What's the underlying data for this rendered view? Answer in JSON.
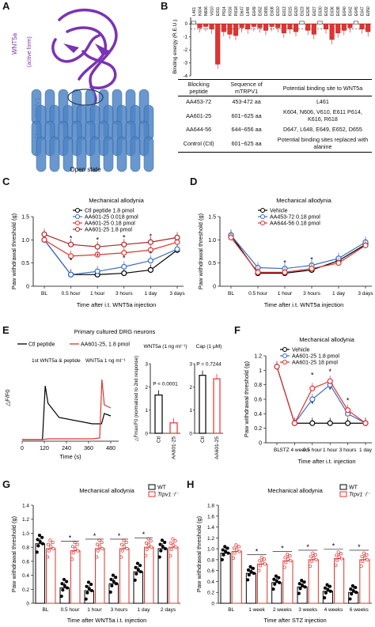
{
  "panel_labels": {
    "a": "A",
    "b": "B",
    "c": "C",
    "d": "D",
    "e": "E",
    "f": "F",
    "g": "G",
    "h": "H"
  },
  "panel_a": {
    "wnt5a_label": "WNT5a\n(active form)",
    "trpv1_label": "Mouse TRPV1",
    "state": "Open state",
    "wnt5a_color": "#7a33b5",
    "trpv1_color": "#4f86c6"
  },
  "panel_b_table": {
    "headers": [
      "Blocking peptide",
      "Sequence of mTRPV1",
      "Potential binding site to WNT5a"
    ],
    "rows": [
      [
        "AA453-72",
        "453-472 aa",
        "L461"
      ],
      [
        "AA601-25",
        "601~625 aa",
        "K604, N606, V610, E611 P614, K616, R618"
      ],
      [
        "AA644-56",
        "644~656 aa",
        "D647, L648, E649, E652, D655"
      ],
      [
        "Control (Ctl)",
        "601~625 aa",
        "Potential binding sites replaced with alanine"
      ]
    ]
  },
  "chart_data": [
    {
      "id": "B",
      "type": "bar",
      "ylabel": "Binding energy (R.E.U.)",
      "ylim": [
        -4,
        0.5
      ],
      "yticks": [
        0,
        -1,
        -2,
        -3,
        -4
      ],
      "categories": [
        "L461",
        "K604",
        "N606",
        "V610",
        "E611",
        "P614",
        "K616",
        "R618",
        "D647",
        "L648",
        "E649",
        "E652",
        "D655",
        "E608",
        "E610",
        "E613",
        "E615",
        "E620",
        "E623",
        "E626",
        "E627",
        "E630",
        "E632",
        "E636",
        "E638",
        "E640",
        "E642",
        "E645",
        "E647",
        "E650"
      ],
      "values": [
        0.2,
        -0.3,
        -0.2,
        -0.4,
        -3.1,
        -0.6,
        -0.8,
        -0.9,
        -0.3,
        -0.4,
        -0.2,
        -0.3,
        -0.5,
        -0.2,
        -0.3,
        -0.7,
        -0.4,
        -0.6,
        0.2,
        -0.5,
        -0.8,
        0.2,
        -0.4,
        -1.2,
        -0.7,
        -0.5,
        -0.3,
        0.2,
        -0.4,
        -0.6
      ]
    },
    {
      "id": "C",
      "type": "line",
      "title": "Mechanical allodynia",
      "ylabel": "Paw withdrawal threshold (g)",
      "xlabel": "Time after i.t. WNT5a injection",
      "ylim": [
        0,
        1.5
      ],
      "yticks": [
        0,
        0.5,
        1.0,
        1.5
      ],
      "categories": [
        "BL",
        "0.5 hour",
        "1 hour",
        "3 hours",
        "1 day",
        "3 days"
      ],
      "series": [
        {
          "name": "Ctl peptide",
          "dose": "1.8 pmol",
          "color": "#000000",
          "values": [
            1.0,
            0.25,
            0.25,
            0.28,
            0.35,
            0.78
          ]
        },
        {
          "name": "AA601-25",
          "dose": "0.018 pmol",
          "color": "#3b6fc4",
          "values": [
            1.0,
            0.25,
            0.32,
            0.42,
            0.55,
            0.8
          ]
        },
        {
          "name": "AA601-25",
          "dose": "0.18 pmol",
          "color": "#e0342e",
          "values": [
            1.0,
            0.65,
            0.68,
            0.72,
            0.78,
            0.95
          ]
        },
        {
          "name": "AA601-25",
          "dose": "1.8 pmol",
          "color": "#a8282a",
          "values": [
            1.12,
            0.9,
            0.85,
            0.9,
            0.95,
            1.05
          ]
        }
      ]
    },
    {
      "id": "D",
      "type": "line",
      "title": "Mechanical allodynia",
      "ylabel": "Paw withdrawal threshold (g)",
      "xlabel": "Time after i.t. WNT5a injection",
      "ylim": [
        0,
        1.5
      ],
      "yticks": [
        0,
        0.5,
        1.0,
        1.5
      ],
      "categories": [
        "BL",
        "0.5 hour",
        "1 hour",
        "3 hours",
        "1 day",
        "3 days"
      ],
      "series": [
        {
          "name": "Vehicle",
          "color": "#000000",
          "values": [
            1.1,
            0.28,
            0.28,
            0.35,
            0.55,
            0.9
          ]
        },
        {
          "name": "AA453-72 0.18 pmol",
          "color": "#3b6fc4",
          "values": [
            1.1,
            0.4,
            0.38,
            0.45,
            0.6,
            0.95
          ]
        },
        {
          "name": "AA644-56 0.18 pmol",
          "color": "#e0342e",
          "values": [
            1.05,
            0.3,
            0.3,
            0.38,
            0.5,
            0.88
          ]
        }
      ]
    },
    {
      "id": "E",
      "type": "line",
      "title": "Primary cultured DRG neurons",
      "ylabel": "△F/F0",
      "xlabel": "Time (s)",
      "xticks": [
        0,
        120,
        240,
        360,
        480
      ],
      "series": [
        {
          "name": "Ctl peptide",
          "color": "#000000"
        },
        {
          "name": "AA601-25, 1.8 pmol",
          "color": "#e0342e"
        }
      ],
      "annotations": [
        "1st WNT5a & peptide",
        "WNT5a 1 ng ml⁻¹"
      ],
      "bars": [
        {
          "title": "WNT5a (1 ng ml⁻¹)",
          "ylabel": "△Fmax/F0 (normalized to 2nd response)",
          "categories": [
            "Ctl",
            "AA601-25"
          ],
          "values": [
            1.65,
            0.45
          ],
          "p": "P < 0.0001",
          "ylim": [
            0,
            3
          ],
          "yticks": [
            0,
            1,
            2,
            3
          ]
        },
        {
          "title": "Cap (1 μM)",
          "categories": [
            "Ctl",
            "AA601-25"
          ],
          "values": [
            2.5,
            2.35
          ],
          "p": "P = 0.7244"
        }
      ]
    },
    {
      "id": "F",
      "type": "line",
      "title": "Mechanical allodynia",
      "ylabel": "Paw withdrawal threshold (g)",
      "xlabel": "Time after i.t. injection",
      "ylim": [
        0,
        1.2
      ],
      "yticks": [
        0,
        0.2,
        0.4,
        0.6,
        0.8,
        1.0,
        1.2
      ],
      "categories": [
        "BL",
        "STZ 4 weeks",
        "0.5 hour",
        "1 hour",
        "3 hours",
        "1 day"
      ],
      "series": [
        {
          "name": "Vehicle",
          "color": "#000000",
          "values": [
            1.05,
            0.27,
            0.27,
            0.27,
            0.27,
            0.27
          ]
        },
        {
          "name": "AA601-25 1.8 pmol",
          "color": "#3b6fc4",
          "values": [
            1.05,
            0.27,
            0.6,
            0.8,
            0.4,
            0.27
          ]
        },
        {
          "name": "AA601-25 18 pmol",
          "color": "#e0342e",
          "values": [
            1.05,
            0.27,
            0.75,
            0.85,
            0.45,
            0.27
          ]
        }
      ]
    },
    {
      "id": "G",
      "type": "bar",
      "title": "Mechanical allodynia",
      "ylabel": "Paw withdrawal threshold (g)",
      "xlabel": "Time after WNT5a i.t. injection",
      "ylim": [
        0,
        1.4
      ],
      "yticks": [
        0,
        0.2,
        0.4,
        0.6,
        0.8,
        1.0,
        1.2,
        1.4
      ],
      "categories": [
        "BL",
        "0.5 hour",
        "1 hour",
        "3 hours",
        "1 day",
        "2 days"
      ],
      "series": [
        {
          "name": "WT",
          "color": "#000000",
          "values": [
            0.85,
            0.22,
            0.18,
            0.28,
            0.45,
            0.78
          ]
        },
        {
          "name": "Trpv1⁻/⁻",
          "color": "#e0342e",
          "values": [
            0.78,
            0.75,
            0.78,
            0.78,
            0.8,
            0.8
          ]
        }
      ]
    },
    {
      "id": "H",
      "type": "bar",
      "title": "Mechanical allodynia",
      "ylabel": "Paw withdrawal threshold (g)",
      "xlabel": "Time after STZ injection",
      "ylim": [
        0,
        1.8
      ],
      "yticks": [
        0,
        0.2,
        0.4,
        0.6,
        0.8,
        1.0,
        1.2,
        1.4,
        1.6,
        1.8
      ],
      "categories": [
        "BL",
        "1 week",
        "2 weeks",
        "3 weeks",
        "4 weeks",
        "6 weeks"
      ],
      "series": [
        {
          "name": "WT",
          "color": "#000000",
          "values": [
            0.92,
            0.55,
            0.38,
            0.3,
            0.22,
            0.2
          ]
        },
        {
          "name": "Trpv1⁻/⁻",
          "color": "#e0342e",
          "values": [
            0.95,
            0.72,
            0.78,
            0.8,
            0.82,
            0.8
          ]
        }
      ]
    }
  ]
}
